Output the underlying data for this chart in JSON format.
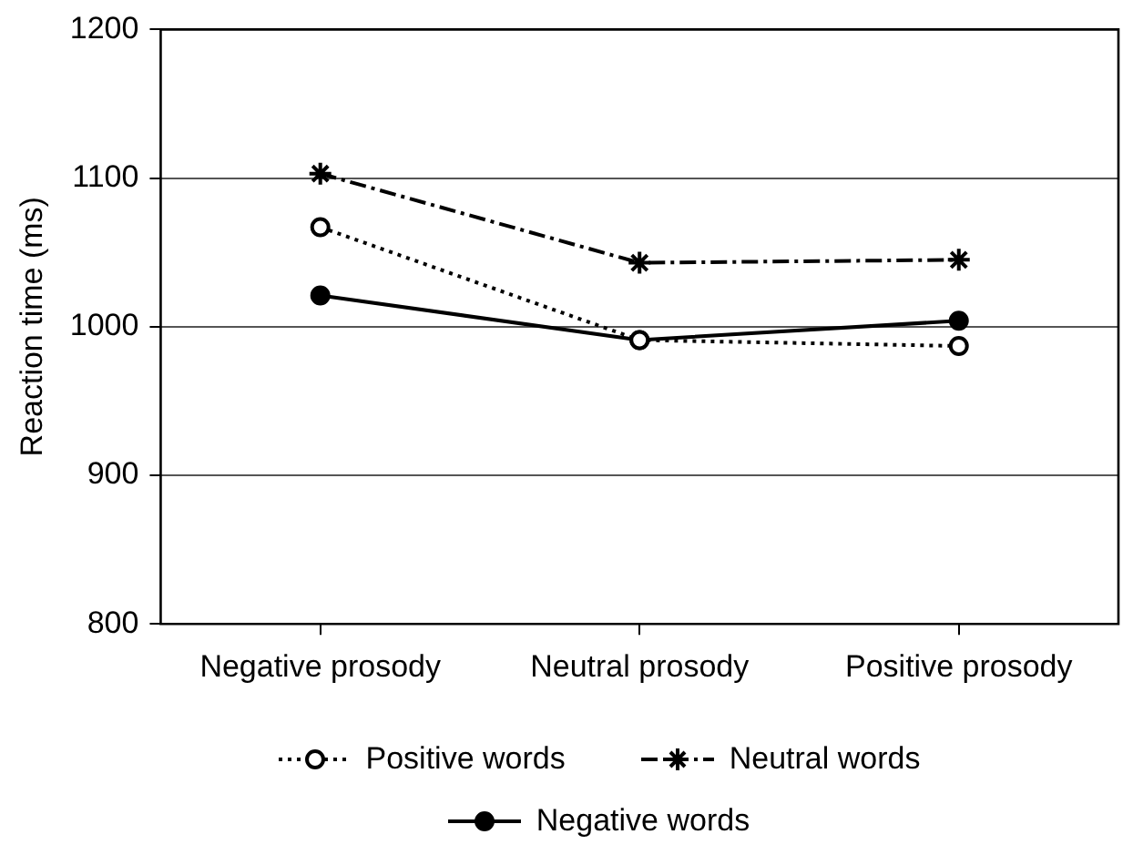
{
  "chart_data": {
    "type": "line",
    "ylabel": "Reaction time (ms)",
    "categories": [
      "Negative prosody",
      "Neutral prosody",
      "Positive prosody"
    ],
    "series": [
      {
        "name": "Positive words",
        "color": "#000000",
        "values": [
          1067,
          991,
          987
        ],
        "marker": "circle",
        "line_style": "dotted"
      },
      {
        "name": "Neutral words",
        "color": "#000000",
        "values": [
          1103,
          1043,
          1045
        ],
        "marker": "cross",
        "line_style": "dashdot"
      },
      {
        "name": "Negative words",
        "color": "#000000",
        "values": [
          1021,
          991,
          1004
        ],
        "marker": "circle",
        "line_style": "solid"
      }
    ],
    "ylim": [
      800,
      1200
    ],
    "yticks": [
      800,
      900,
      1000,
      1100,
      1200
    ],
    "grid": "y",
    "legend": "bottom"
  }
}
